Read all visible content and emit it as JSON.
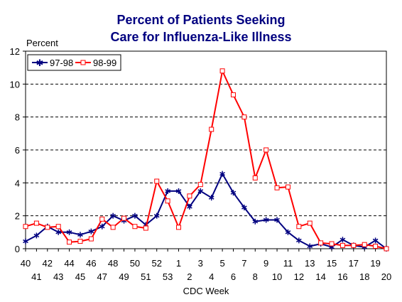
{
  "chart_data": {
    "type": "line",
    "title": "Percent of Patients Seeking",
    "subtitle": "Care for Influenza-Like Illness",
    "xlabel": "CDC Week",
    "ylabel": "Percent",
    "ylim": [
      0,
      12
    ],
    "yticks": [
      "0",
      "2",
      "4",
      "6",
      "8",
      "10",
      "12"
    ],
    "grid": true,
    "legend_position": "top-left",
    "categories": [
      "40",
      "41",
      "42",
      "43",
      "44",
      "45",
      "46",
      "47",
      "48",
      "49",
      "50",
      "51",
      "52",
      "53",
      "1",
      "2",
      "3",
      "4",
      "5",
      "6",
      "7",
      "8",
      "9",
      "10",
      "11",
      "12",
      "13",
      "14",
      "15",
      "16",
      "17",
      "18",
      "19",
      "20"
    ],
    "series": [
      {
        "name": "97-98",
        "color": "#000080",
        "marker": "star",
        "values": [
          0.45,
          0.8,
          1.35,
          1.0,
          1.0,
          0.85,
          1.05,
          1.35,
          2.0,
          1.7,
          2.0,
          1.45,
          2.0,
          3.5,
          3.5,
          2.55,
          3.5,
          3.1,
          4.55,
          3.4,
          2.5,
          1.65,
          1.75,
          1.75,
          1.0,
          0.5,
          0.15,
          0.3,
          0.1,
          0.55,
          0.2,
          0.1,
          0.5,
          0.0
        ]
      },
      {
        "name": "98-99",
        "color": "#ff0000",
        "marker": "square",
        "values": [
          1.35,
          1.55,
          1.3,
          1.35,
          0.4,
          0.45,
          0.6,
          1.8,
          1.3,
          1.85,
          1.35,
          1.25,
          4.1,
          2.9,
          1.3,
          3.2,
          3.9,
          7.25,
          10.8,
          9.35,
          8.0,
          4.3,
          6.0,
          3.7,
          3.75,
          1.35,
          1.55,
          0.35,
          0.3,
          0.2,
          0.2,
          0.25,
          0.15,
          0.0
        ]
      }
    ]
  }
}
